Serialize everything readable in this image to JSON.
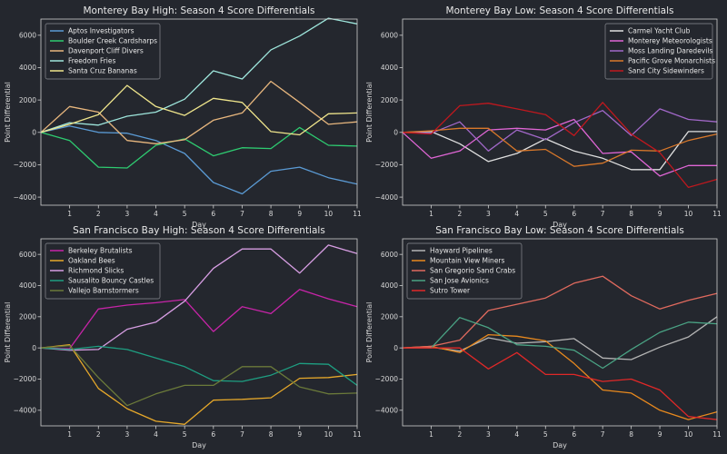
{
  "chart_data": [
    {
      "type": "line",
      "title": "Monterey Bay High: Season 4 Score Differentials",
      "xlabel": "Day",
      "ylabel": "Point Differential",
      "xlim": [
        0,
        11
      ],
      "ylim": [
        -4500,
        7000
      ],
      "xticks": [
        1,
        2,
        3,
        4,
        5,
        6,
        7,
        8,
        9,
        10,
        11
      ],
      "yticks": [
        -4000,
        -2000,
        0,
        2000,
        4000,
        6000
      ],
      "legend_position": "top-left",
      "x": [
        0,
        1,
        2,
        3,
        4,
        5,
        6,
        7,
        8,
        9,
        10,
        11
      ],
      "series": [
        {
          "name": "Aptos Investigators",
          "color": "#5b9bd5",
          "values": [
            0,
            400,
            0,
            -50,
            -500,
            -1300,
            -3100,
            -3800,
            -2400,
            -2150,
            -2800,
            -3200
          ]
        },
        {
          "name": "Boulder Creek Cardsharps",
          "color": "#2ecc71",
          "values": [
            0,
            -500,
            -2150,
            -2200,
            -800,
            -400,
            -1450,
            -950,
            -1000,
            300,
            -800,
            -850
          ]
        },
        {
          "name": "Davenport Cliff Divers",
          "color": "#e8b77e",
          "values": [
            0,
            1600,
            1250,
            -500,
            -700,
            -450,
            750,
            1200,
            3150,
            1850,
            500,
            650
          ]
        },
        {
          "name": "Freedom Fries",
          "color": "#9ee6dc",
          "values": [
            0,
            600,
            450,
            1000,
            1250,
            2050,
            3800,
            3300,
            5100,
            5950,
            7050,
            6700
          ]
        },
        {
          "name": "Santa Cruz Bananas",
          "color": "#f0e68c",
          "values": [
            0,
            500,
            1100,
            2900,
            1600,
            1050,
            2100,
            1850,
            50,
            -150,
            1150,
            1200
          ]
        }
      ]
    },
    {
      "type": "line",
      "title": "Monterey Bay Low: Season 4 Score Differentials",
      "xlabel": "Day",
      "ylabel": "Point Differential",
      "xlim": [
        0,
        11
      ],
      "ylim": [
        -4500,
        7000
      ],
      "xticks": [
        1,
        2,
        3,
        4,
        5,
        6,
        7,
        8,
        9,
        10,
        11
      ],
      "yticks": [
        -4000,
        -2000,
        0,
        2000,
        4000,
        6000
      ],
      "legend_position": "top-right",
      "x": [
        0,
        1,
        2,
        3,
        4,
        5,
        6,
        7,
        8,
        9,
        10,
        11
      ],
      "series": [
        {
          "name": "Carmel Yacht Club",
          "color": "#e0e0e0",
          "values": [
            0,
            50,
            -700,
            -1800,
            -1300,
            -400,
            -1150,
            -1600,
            -2300,
            -2300,
            50,
            50
          ]
        },
        {
          "name": "Monterey Meteorologists",
          "color": "#e066d6",
          "values": [
            0,
            -1600,
            -1150,
            150,
            250,
            150,
            800,
            -1300,
            -1200,
            -2700,
            -2050,
            -2050
          ]
        },
        {
          "name": "Moss Landing Daredevils",
          "color": "#a268c9",
          "values": [
            0,
            -50,
            650,
            -1150,
            150,
            -450,
            600,
            1350,
            -200,
            1450,
            800,
            650
          ]
        },
        {
          "name": "Pacific Grove Monarchists",
          "color": "#d9782a",
          "values": [
            0,
            100,
            250,
            250,
            -1150,
            -1050,
            -2100,
            -1900,
            -1100,
            -1150,
            -500,
            -100
          ]
        },
        {
          "name": "Sand City Sidewinders",
          "color": "#c0181e",
          "values": [
            0,
            -100,
            1650,
            1800,
            1450,
            1100,
            -200,
            1850,
            -100,
            -1250,
            -3400,
            -2900
          ]
        }
      ]
    },
    {
      "type": "line",
      "title": "San Francisco Bay High: Season 4 Score Differentials",
      "xlabel": "Day",
      "ylabel": "Point Differential",
      "xlim": [
        0,
        11
      ],
      "ylim": [
        -5000,
        7000
      ],
      "xticks": [
        1,
        2,
        3,
        4,
        5,
        6,
        7,
        8,
        9,
        10,
        11
      ],
      "yticks": [
        -4000,
        -2000,
        0,
        2000,
        4000,
        6000
      ],
      "legend_position": "top-left",
      "x": [
        0,
        1,
        2,
        3,
        4,
        5,
        6,
        7,
        8,
        9,
        10,
        11
      ],
      "series": [
        {
          "name": "Berkeley Brutalists",
          "color": "#c724a8",
          "values": [
            0,
            -50,
            2500,
            2750,
            2900,
            3100,
            1050,
            2650,
            2200,
            3750,
            3150,
            2650
          ]
        },
        {
          "name": "Oakland Bees",
          "color": "#e6a82a",
          "values": [
            0,
            200,
            -2600,
            -3900,
            -4700,
            -4900,
            -3350,
            -3300,
            -3200,
            -1950,
            -1900,
            -1700
          ]
        },
        {
          "name": "Richmond Slicks",
          "color": "#d79ee3",
          "values": [
            0,
            -150,
            -100,
            1200,
            1650,
            3000,
            5100,
            6350,
            6350,
            4800,
            6600,
            6050
          ]
        },
        {
          "name": "Sausalito Bouncy Castles",
          "color": "#1e9f82",
          "values": [
            0,
            -100,
            100,
            -100,
            -650,
            -1200,
            -2100,
            -2150,
            -1750,
            -1000,
            -1050,
            -2400
          ]
        },
        {
          "name": "Vallejo Barnstormers",
          "color": "#6b7a3a",
          "values": [
            0,
            150,
            -1900,
            -3700,
            -2950,
            -2400,
            -2400,
            -1200,
            -1200,
            -2500,
            -2950,
            -2900
          ]
        }
      ]
    },
    {
      "type": "line",
      "title": "San Francisco Bay Low: Season 4 Score Differentials",
      "xlabel": "Day",
      "ylabel": "Point Differential",
      "xlim": [
        0,
        11
      ],
      "ylim": [
        -5000,
        7000
      ],
      "xticks": [
        1,
        2,
        3,
        4,
        5,
        6,
        7,
        8,
        9,
        10,
        11
      ],
      "yticks": [
        -4000,
        -2000,
        0,
        2000,
        4000,
        6000
      ],
      "legend_position": "top-left",
      "x": [
        0,
        1,
        2,
        3,
        4,
        5,
        6,
        7,
        8,
        9,
        10,
        11
      ],
      "series": [
        {
          "name": "Hayward Pipelines",
          "color": "#b5b5b5",
          "values": [
            0,
            50,
            -200,
            650,
            300,
            400,
            600,
            -650,
            -750,
            50,
            700,
            2000
          ]
        },
        {
          "name": "Mountain View Miners",
          "color": "#e8891e",
          "values": [
            0,
            100,
            -300,
            850,
            750,
            450,
            -1000,
            -2700,
            -2900,
            -4000,
            -4600,
            -4100
          ]
        },
        {
          "name": "San Gregorio Sand Crabs",
          "color": "#e06a5e",
          "values": [
            0,
            100,
            500,
            2400,
            2800,
            3200,
            4150,
            4600,
            3350,
            2500,
            3050,
            3500
          ]
        },
        {
          "name": "San Jose Avionics",
          "color": "#4aa384",
          "values": [
            0,
            0,
            1950,
            1300,
            200,
            100,
            -150,
            -1300,
            -100,
            1000,
            1650,
            1550
          ]
        },
        {
          "name": "Sutro Tower",
          "color": "#e02828",
          "values": [
            0,
            0,
            0,
            -1350,
            -300,
            -1700,
            -1700,
            -2150,
            -2000,
            -2700,
            -4400,
            -4600
          ]
        }
      ]
    }
  ]
}
